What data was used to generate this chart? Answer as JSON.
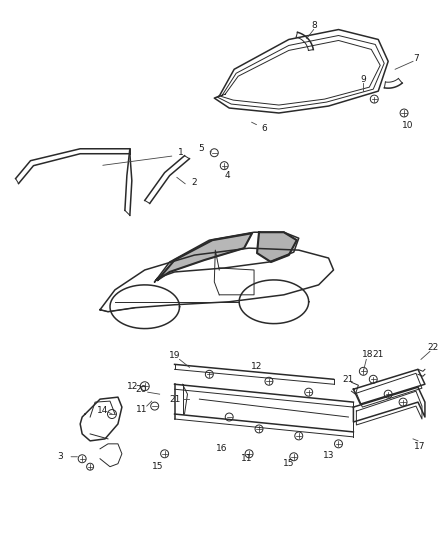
{
  "bg_color": "#ffffff",
  "line_color": "#2a2a2a",
  "label_color": "#1a1a1a",
  "fig_width": 4.39,
  "fig_height": 5.33,
  "dpi": 100
}
